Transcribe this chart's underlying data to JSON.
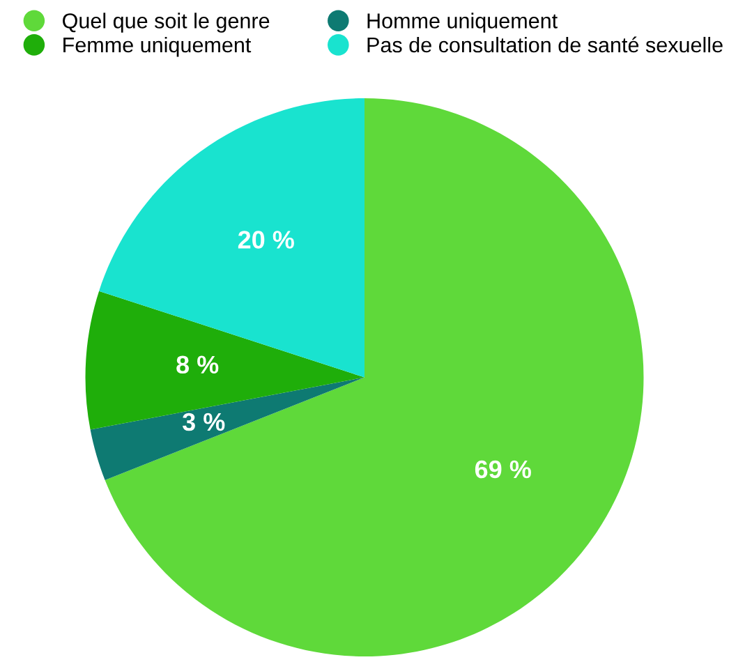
{
  "chart_data": {
    "type": "pie",
    "categories": [
      "Quel que soit le genre",
      "Homme uniquement",
      "Femme uniquement",
      "Pas de consultation de santé sexuelle"
    ],
    "values": [
      69,
      3,
      8,
      20
    ],
    "value_labels": [
      "69 %",
      "3 %",
      "8 %",
      "20 %"
    ],
    "colors": [
      "#5fd93a",
      "#0e7a72",
      "#1fae0a",
      "#19e3cf"
    ],
    "legend": "top"
  }
}
